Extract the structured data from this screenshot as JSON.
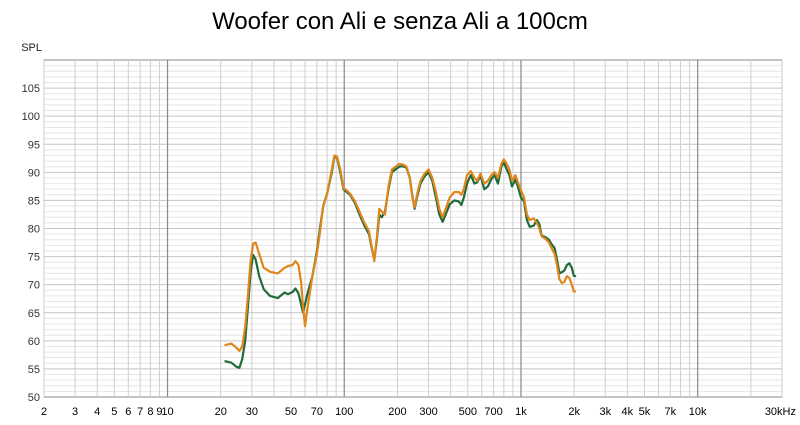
{
  "chart_data": {
    "type": "line",
    "title": "Woofer con Ali e senza Ali a 100cm",
    "ylabel": "SPL",
    "xlabel": "",
    "x_scale": "log",
    "xlim": [
      2,
      30000
    ],
    "ylim": [
      50,
      110
    ],
    "y_ticks": [
      50,
      55,
      60,
      65,
      70,
      75,
      80,
      85,
      90,
      95,
      100,
      105
    ],
    "x_ticks": [
      {
        "value": 2,
        "label": "2"
      },
      {
        "value": 3,
        "label": "3"
      },
      {
        "value": 4,
        "label": "4"
      },
      {
        "value": 5,
        "label": "5"
      },
      {
        "value": 6,
        "label": "6"
      },
      {
        "value": 7,
        "label": "7"
      },
      {
        "value": 8,
        "label": "8"
      },
      {
        "value": 9,
        "label": "9"
      },
      {
        "value": 10,
        "label": "10"
      },
      {
        "value": 20,
        "label": "20"
      },
      {
        "value": 30,
        "label": "30"
      },
      {
        "value": 50,
        "label": "50"
      },
      {
        "value": 70,
        "label": "70"
      },
      {
        "value": 100,
        "label": "100"
      },
      {
        "value": 200,
        "label": "200"
      },
      {
        "value": 300,
        "label": "300"
      },
      {
        "value": 500,
        "label": "500"
      },
      {
        "value": 700,
        "label": "700"
      },
      {
        "value": 1000,
        "label": "1k"
      },
      {
        "value": 2000,
        "label": "2k"
      },
      {
        "value": 3000,
        "label": "3k"
      },
      {
        "value": 4000,
        "label": "4k"
      },
      {
        "value": 5000,
        "label": "5k"
      },
      {
        "value": 7000,
        "label": "7k"
      },
      {
        "value": 10000,
        "label": "10k"
      },
      {
        "value": 30000,
        "label": "30kHz"
      }
    ],
    "grid": true,
    "series": [
      {
        "color": "#1f6b3a",
        "points": [
          [
            21,
            56.4
          ],
          [
            23,
            56.1
          ],
          [
            24.5,
            55.4
          ],
          [
            25.5,
            55.2
          ],
          [
            26.5,
            56.8
          ],
          [
            27.5,
            60
          ],
          [
            28.5,
            66
          ],
          [
            29.5,
            72
          ],
          [
            30.5,
            75.3
          ],
          [
            31.5,
            74.5
          ],
          [
            33,
            71.5
          ],
          [
            35,
            69.2
          ],
          [
            38,
            68.0
          ],
          [
            42,
            67.6
          ],
          [
            46,
            68.6
          ],
          [
            48,
            68.3
          ],
          [
            51,
            68.7
          ],
          [
            53,
            69.3
          ],
          [
            55,
            68.5
          ],
          [
            57,
            66.5
          ],
          [
            58.5,
            65
          ],
          [
            60,
            66.5
          ],
          [
            62,
            68.5
          ],
          [
            66,
            71.5
          ],
          [
            70,
            76
          ],
          [
            73,
            80.2
          ],
          [
            76,
            84
          ],
          [
            80,
            86.2
          ],
          [
            85,
            90
          ],
          [
            88,
            92.8
          ],
          [
            91,
            92.6
          ],
          [
            95,
            90
          ],
          [
            99,
            87
          ],
          [
            103,
            86.5
          ],
          [
            108,
            86
          ],
          [
            115,
            84.5
          ],
          [
            122,
            82.5
          ],
          [
            130,
            80.5
          ],
          [
            138,
            79
          ],
          [
            143,
            76.5
          ],
          [
            148,
            74.5
          ],
          [
            153,
            78
          ],
          [
            158,
            82.5
          ],
          [
            163,
            82
          ],
          [
            170,
            83
          ],
          [
            178,
            87
          ],
          [
            186,
            90
          ],
          [
            195,
            90.5
          ],
          [
            205,
            91
          ],
          [
            215,
            91.1
          ],
          [
            225,
            90.8
          ],
          [
            235,
            89
          ],
          [
            243,
            85.8
          ],
          [
            250,
            83.5
          ],
          [
            260,
            86
          ],
          [
            270,
            88
          ],
          [
            285,
            89.3
          ],
          [
            300,
            90
          ],
          [
            315,
            88.5
          ],
          [
            330,
            85.5
          ],
          [
            345,
            82.5
          ],
          [
            360,
            81.2
          ],
          [
            375,
            82.5
          ],
          [
            395,
            84.3
          ],
          [
            420,
            85
          ],
          [
            445,
            84.8
          ],
          [
            460,
            84.2
          ],
          [
            475,
            85.5
          ],
          [
            495,
            88
          ],
          [
            520,
            89.5
          ],
          [
            545,
            88
          ],
          [
            565,
            88.2
          ],
          [
            590,
            89.4
          ],
          [
            620,
            87
          ],
          [
            650,
            87.5
          ],
          [
            680,
            88.8
          ],
          [
            710,
            89.5
          ],
          [
            740,
            88
          ],
          [
            775,
            91
          ],
          [
            800,
            91.8
          ],
          [
            830,
            90.5
          ],
          [
            860,
            89.5
          ],
          [
            890,
            87.5
          ],
          [
            930,
            88.7
          ],
          [
            960,
            87.5
          ],
          [
            1000,
            85.5
          ],
          [
            1040,
            84.8
          ],
          [
            1080,
            81.5
          ],
          [
            1120,
            80.3
          ],
          [
            1180,
            80.5
          ],
          [
            1230,
            81.5
          ],
          [
            1270,
            80.8
          ],
          [
            1310,
            78.7
          ],
          [
            1370,
            78.5
          ],
          [
            1440,
            78
          ],
          [
            1490,
            77.2
          ],
          [
            1550,
            76.5
          ],
          [
            1600,
            74.5
          ],
          [
            1650,
            72
          ],
          [
            1700,
            72.2
          ],
          [
            1760,
            72.5
          ],
          [
            1820,
            73.5
          ],
          [
            1880,
            73.8
          ],
          [
            1940,
            73
          ],
          [
            1990,
            71.6
          ],
          [
            2050,
            71.5
          ]
        ]
      },
      {
        "color": "#e0861b",
        "points": [
          [
            21,
            59.2
          ],
          [
            23,
            59.5
          ],
          [
            24.5,
            58.8
          ],
          [
            25.5,
            58.2
          ],
          [
            26.5,
            59
          ],
          [
            27.5,
            62.5
          ],
          [
            28.5,
            68
          ],
          [
            29.5,
            74
          ],
          [
            30.5,
            77.3
          ],
          [
            31.5,
            77.5
          ],
          [
            33,
            75.5
          ],
          [
            35,
            73
          ],
          [
            38,
            72.3
          ],
          [
            42,
            72
          ],
          [
            46,
            73
          ],
          [
            48,
            73.3
          ],
          [
            51,
            73.5
          ],
          [
            53,
            74.2
          ],
          [
            55,
            73.5
          ],
          [
            57,
            70.5
          ],
          [
            58.5,
            66
          ],
          [
            60,
            62.6
          ],
          [
            62,
            66
          ],
          [
            66,
            71.5
          ],
          [
            70,
            75.5
          ],
          [
            73,
            79.5
          ],
          [
            76,
            84
          ],
          [
            80,
            86.2
          ],
          [
            85,
            90.5
          ],
          [
            88,
            93
          ],
          [
            91,
            92.8
          ],
          [
            95,
            90.5
          ],
          [
            99,
            87.2
          ],
          [
            103,
            86.8
          ],
          [
            108,
            86.2
          ],
          [
            115,
            84.8
          ],
          [
            122,
            83
          ],
          [
            130,
            81
          ],
          [
            138,
            79.5
          ],
          [
            143,
            76.8
          ],
          [
            148,
            74.2
          ],
          [
            153,
            78.5
          ],
          [
            158,
            83.5
          ],
          [
            163,
            83
          ],
          [
            170,
            82.5
          ],
          [
            178,
            87.5
          ],
          [
            186,
            90.5
          ],
          [
            195,
            91
          ],
          [
            205,
            91.5
          ],
          [
            215,
            91.4
          ],
          [
            225,
            91
          ],
          [
            235,
            89
          ],
          [
            243,
            85.5
          ],
          [
            250,
            83.8
          ],
          [
            260,
            86.5
          ],
          [
            270,
            88.5
          ],
          [
            285,
            89.8
          ],
          [
            300,
            90.5
          ],
          [
            315,
            89
          ],
          [
            330,
            86.5
          ],
          [
            345,
            83.5
          ],
          [
            360,
            82
          ],
          [
            375,
            83.5
          ],
          [
            395,
            85.5
          ],
          [
            420,
            86.5
          ],
          [
            445,
            86.5
          ],
          [
            460,
            86
          ],
          [
            475,
            87
          ],
          [
            495,
            89.5
          ],
          [
            520,
            90.2
          ],
          [
            545,
            89
          ],
          [
            565,
            88.5
          ],
          [
            590,
            89.8
          ],
          [
            620,
            88
          ],
          [
            650,
            88.5
          ],
          [
            680,
            89.5
          ],
          [
            710,
            90
          ],
          [
            740,
            89
          ],
          [
            775,
            91.5
          ],
          [
            800,
            92.3
          ],
          [
            830,
            91.5
          ],
          [
            860,
            90.5
          ],
          [
            890,
            88.5
          ],
          [
            930,
            89.5
          ],
          [
            960,
            88.3
          ],
          [
            1000,
            86.8
          ],
          [
            1040,
            85.5
          ],
          [
            1080,
            82.5
          ],
          [
            1120,
            81.5
          ],
          [
            1180,
            81.8
          ],
          [
            1230,
            81
          ],
          [
            1270,
            80
          ],
          [
            1310,
            78.6
          ],
          [
            1370,
            78.2
          ],
          [
            1440,
            77.5
          ],
          [
            1490,
            76.5
          ],
          [
            1550,
            75.5
          ],
          [
            1600,
            73.5
          ],
          [
            1650,
            71
          ],
          [
            1700,
            70.3
          ],
          [
            1760,
            70.5
          ],
          [
            1820,
            71.5
          ],
          [
            1880,
            71.2
          ],
          [
            1940,
            70
          ],
          [
            1990,
            68.8
          ],
          [
            2050,
            68.8
          ]
        ]
      }
    ]
  }
}
